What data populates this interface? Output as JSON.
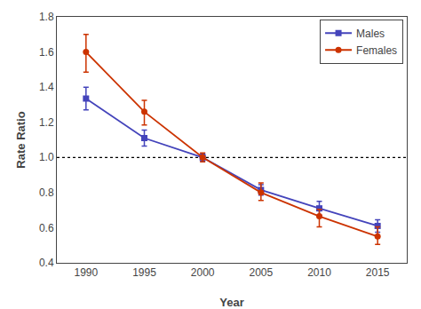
{
  "chart_data": {
    "type": "line",
    "xlabel": "Year",
    "ylabel": "Rate Ratio",
    "x": [
      1990,
      1995,
      2000,
      2005,
      2010,
      2015
    ],
    "series": [
      {
        "name": "Males",
        "color": "#4444bb",
        "marker": "square",
        "line_style": "solid",
        "values": [
          1.335,
          1.11,
          1.0,
          0.815,
          0.71,
          0.61
        ],
        "error_low": [
          0.065,
          0.045,
          0.02,
          0.03,
          0.04,
          0.035
        ],
        "error_high": [
          0.065,
          0.045,
          0.02,
          0.03,
          0.04,
          0.035
        ]
      },
      {
        "name": "Females",
        "color": "#cc3300",
        "marker": "circle",
        "line_style": "solid",
        "values": [
          1.6,
          1.26,
          1.0,
          0.8,
          0.665,
          0.55
        ],
        "error_low": [
          0.115,
          0.075,
          0.025,
          0.045,
          0.06,
          0.045
        ],
        "error_high": [
          0.1,
          0.065,
          0.025,
          0.055,
          0.04,
          0.055
        ]
      }
    ],
    "hline": {
      "y": 1.0,
      "color": "#000000",
      "line_style": "dotted"
    },
    "xlim": [
      1987.5,
      2017.5
    ],
    "xticks": [
      1990,
      1995,
      2000,
      2005,
      2010,
      2015
    ],
    "ylim": [
      0.4,
      1.8
    ],
    "yticks": [
      0.4,
      0.6,
      0.8,
      {
        "value": 1.0,
        "label": "1.0"
      },
      1.2,
      1.4,
      1.6,
      1.8
    ],
    "grid": false,
    "legend": "upper right"
  }
}
